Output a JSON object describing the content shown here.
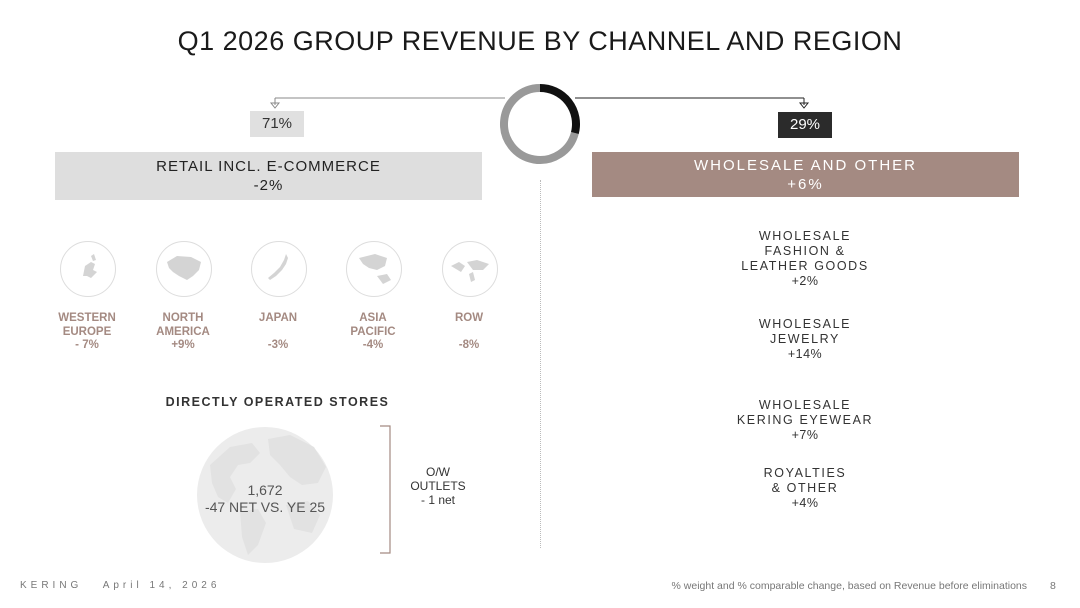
{
  "title": "Q1 2026 GROUP REVENUE BY CHANNEL AND REGION",
  "colors": {
    "wholesale": "#a48a82",
    "retail": "#dedede",
    "accent_dark": "#2b2b2b",
    "donut_grey": "#999999",
    "donut_black": "#111111"
  },
  "donut": {
    "retail_share": 0.71,
    "wholesale_share": 0.29
  },
  "retail": {
    "share": "71%",
    "label": "RETAIL INCL. E-COMMERCE",
    "change": "-2%",
    "regions": [
      {
        "line1": "WESTERN",
        "line2": "EUROPE",
        "change": "- 7%",
        "icon": "europe-map-icon"
      },
      {
        "line1": "NORTH",
        "line2": "AMERICA",
        "change": "+9%",
        "icon": "north-america-map-icon"
      },
      {
        "line1": "JAPAN",
        "line2": "",
        "change": "-3%",
        "icon": "japan-map-icon"
      },
      {
        "line1": "ASIA",
        "line2": "PACIFIC",
        "change": "-4%",
        "icon": "asia-pacific-map-icon"
      },
      {
        "line1": "ROW",
        "line2": "",
        "change": "-8%",
        "icon": "world-map-icon"
      }
    ],
    "dos": {
      "title": "DIRECTLY OPERATED STORES",
      "count": "1,672",
      "net": "-47 NET VS. YE 25",
      "ow_line1": "O/W",
      "ow_line2": "OUTLETS",
      "ow_line3": "- 1 net"
    }
  },
  "wholesale": {
    "share": "29%",
    "label": "WHOLESALE AND OTHER",
    "change": "+6%",
    "items": [
      {
        "lines": [
          "WHOLESALE",
          "FASHION &",
          "LEATHER GOODS"
        ],
        "change": "+2%"
      },
      {
        "lines": [
          "WHOLESALE",
          "JEWELRY"
        ],
        "change": "+14%"
      },
      {
        "lines": [
          "WHOLESALE",
          "KERING EYEWEAR"
        ],
        "change": "+7%"
      },
      {
        "lines": [
          "ROYALTIES",
          "& OTHER"
        ],
        "change": "+4%"
      }
    ]
  },
  "footer": {
    "brand": "KERING",
    "date": "April 14, 2026",
    "note": "% weight and % comparable change, based on Revenue before eliminations",
    "page": "8"
  }
}
